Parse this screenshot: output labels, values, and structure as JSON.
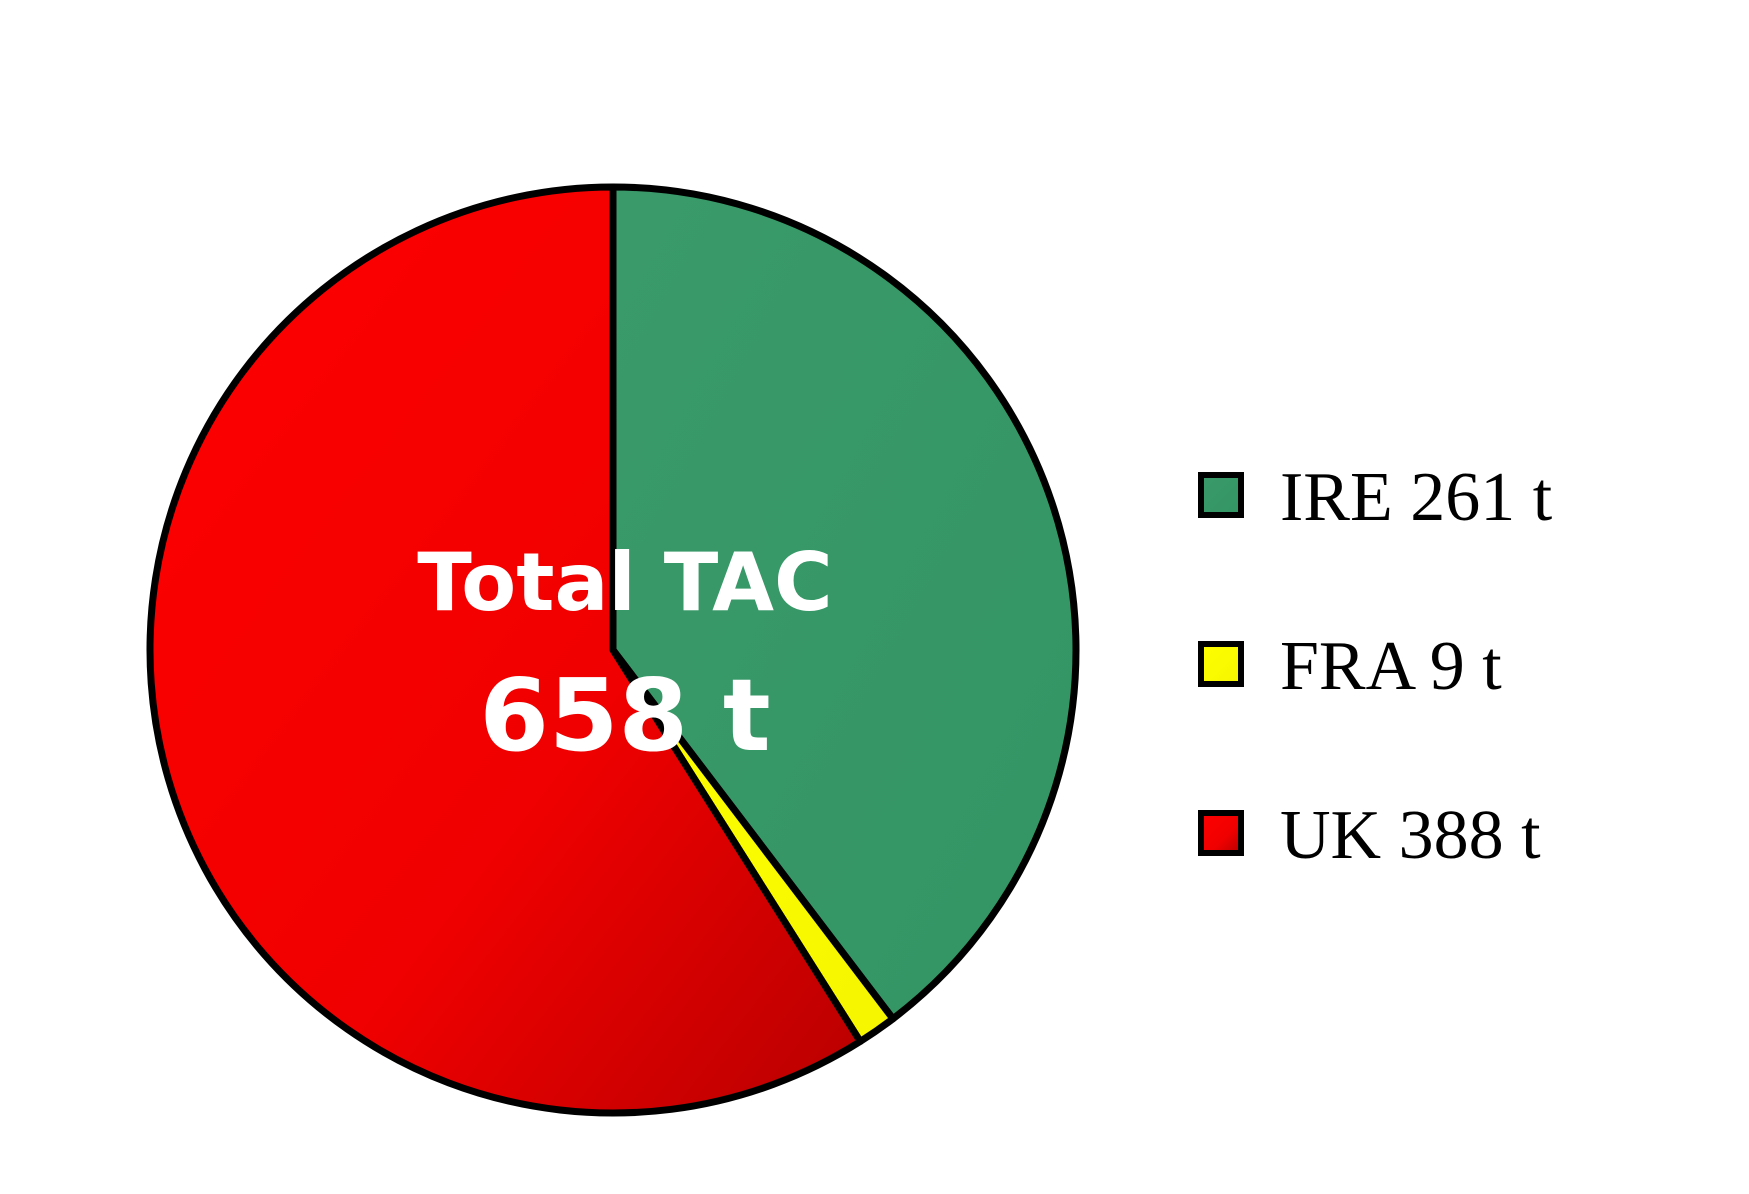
{
  "chart_data": {
    "type": "pie",
    "slices": [
      {
        "label": "IRE 261 t",
        "value": 261,
        "color": "#3a9a6a"
      },
      {
        "label": "FRA 9 t",
        "value": 9,
        "color": "#ffff00"
      },
      {
        "label": "UK 388 t",
        "value": 388,
        "color": "#ff0000"
      }
    ],
    "center_text": [
      "Total TAC",
      "658 t"
    ],
    "legend_position": "right"
  }
}
